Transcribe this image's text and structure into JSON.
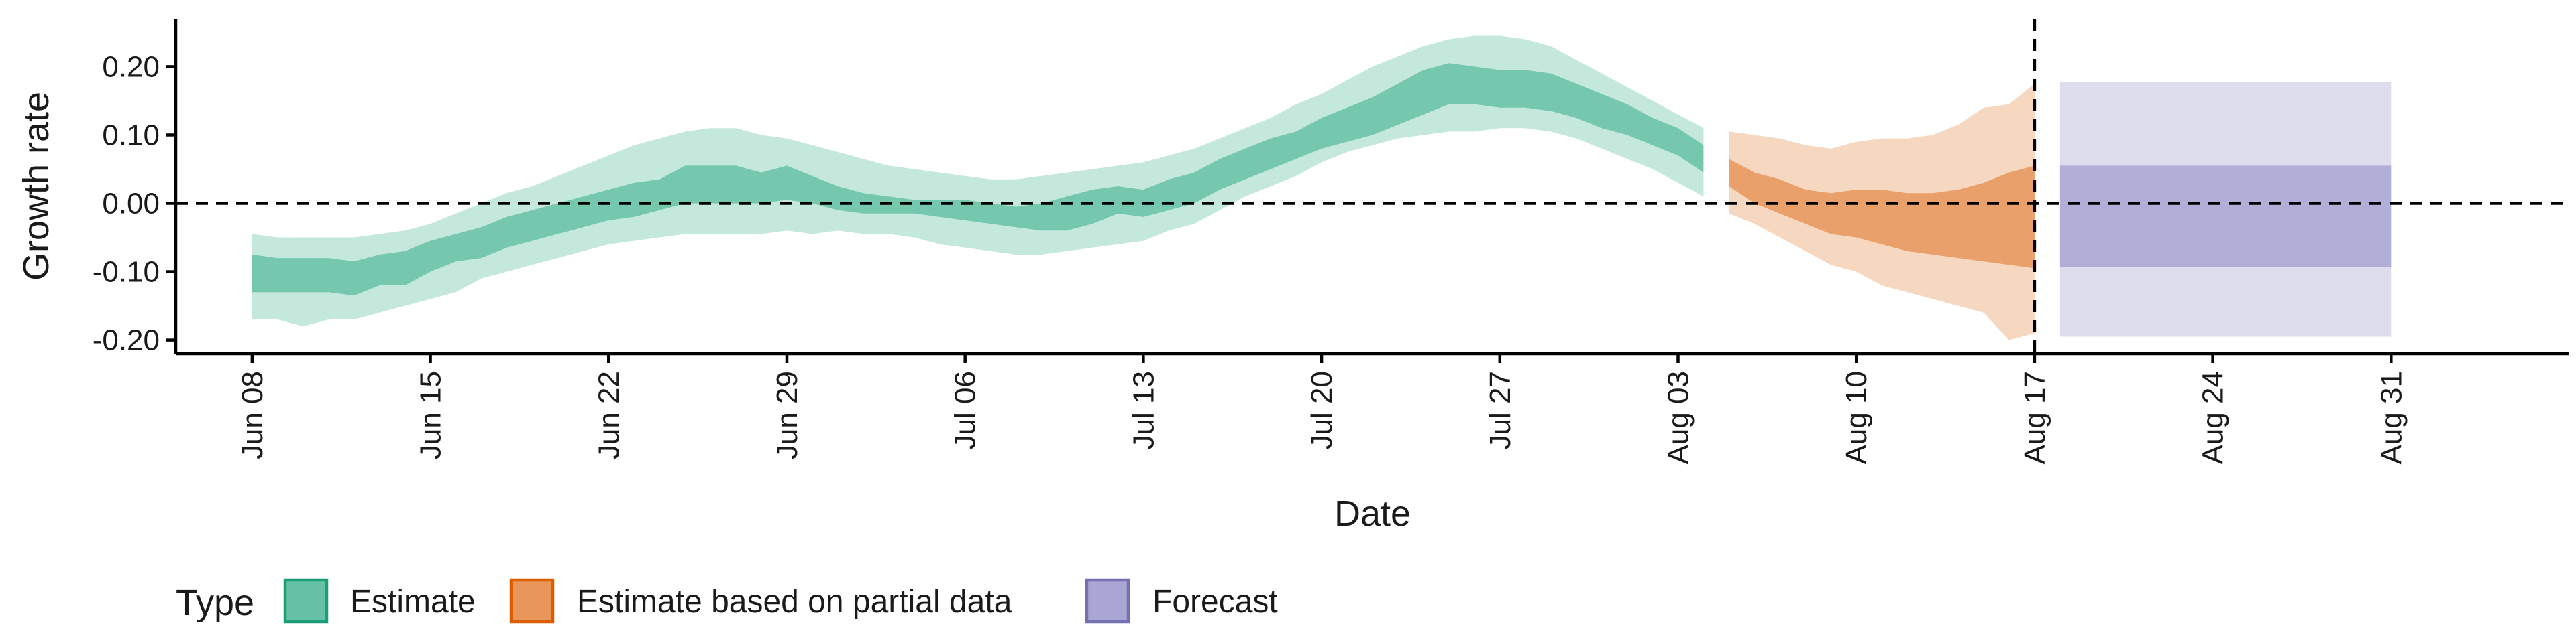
{
  "chart_data": {
    "type": "area",
    "title": "",
    "xlabel": "Date",
    "ylabel": "Growth rate",
    "ylim": [
      -0.22,
      0.27
    ],
    "yticks": [
      {
        "value": -0.2,
        "label": "-0.20"
      },
      {
        "value": -0.1,
        "label": "-0.10"
      },
      {
        "value": 0.0,
        "label": "0.00"
      },
      {
        "value": 0.1,
        "label": "0.10"
      },
      {
        "value": 0.2,
        "label": "0.20"
      }
    ],
    "xlim": [
      "2021-06-05",
      "2021-09-07"
    ],
    "xticks": [
      {
        "date": "2021-06-08",
        "label": "Jun 08"
      },
      {
        "date": "2021-06-15",
        "label": "Jun 15"
      },
      {
        "date": "2021-06-22",
        "label": "Jun 22"
      },
      {
        "date": "2021-06-29",
        "label": "Jun 29"
      },
      {
        "date": "2021-07-06",
        "label": "Jul 06"
      },
      {
        "date": "2021-07-13",
        "label": "Jul 13"
      },
      {
        "date": "2021-07-20",
        "label": "Jul 20"
      },
      {
        "date": "2021-07-27",
        "label": "Jul 27"
      },
      {
        "date": "2021-08-03",
        "label": "Aug 03"
      },
      {
        "date": "2021-08-10",
        "label": "Aug 10"
      },
      {
        "date": "2021-08-17",
        "label": "Aug 17"
      },
      {
        "date": "2021-08-24",
        "label": "Aug 24"
      },
      {
        "date": "2021-08-31",
        "label": "Aug 31"
      }
    ],
    "reference_lines": {
      "horizontal_y": 0.0,
      "vertical_x": "2021-08-17",
      "style": "dashed"
    },
    "legend": {
      "title": "Type",
      "placement": "bottom-left",
      "entries": [
        {
          "label": "Estimate",
          "fill": "#66c2a5",
          "stroke": "#1b9e77"
        },
        {
          "label": "Estimate based on partial data",
          "fill": "#e8965a",
          "stroke": "#d95f02"
        },
        {
          "label": "Forecast",
          "fill": "#a9a6d3",
          "stroke": "#7570b3"
        }
      ]
    },
    "series": [
      {
        "name": "Estimate",
        "color": "#66c2a5",
        "x": [
          "2021-06-08",
          "2021-06-09",
          "2021-06-10",
          "2021-06-11",
          "2021-06-12",
          "2021-06-13",
          "2021-06-14",
          "2021-06-15",
          "2021-06-16",
          "2021-06-17",
          "2021-06-18",
          "2021-06-19",
          "2021-06-20",
          "2021-06-21",
          "2021-06-22",
          "2021-06-23",
          "2021-06-24",
          "2021-06-25",
          "2021-06-26",
          "2021-06-27",
          "2021-06-28",
          "2021-06-29",
          "2021-06-30",
          "2021-07-01",
          "2021-07-02",
          "2021-07-03",
          "2021-07-04",
          "2021-07-05",
          "2021-07-06",
          "2021-07-07",
          "2021-07-08",
          "2021-07-09",
          "2021-07-10",
          "2021-07-11",
          "2021-07-12",
          "2021-07-13",
          "2021-07-14",
          "2021-07-15",
          "2021-07-16",
          "2021-07-17",
          "2021-07-18",
          "2021-07-19",
          "2021-07-20",
          "2021-07-21",
          "2021-07-22",
          "2021-07-23",
          "2021-07-24",
          "2021-07-25",
          "2021-07-26",
          "2021-07-27",
          "2021-07-28",
          "2021-07-29",
          "2021-07-30",
          "2021-07-31",
          "2021-08-01",
          "2021-08-02",
          "2021-08-03",
          "2021-08-04"
        ],
        "lower90": [
          -0.17,
          -0.17,
          -0.18,
          -0.17,
          -0.17,
          -0.16,
          -0.15,
          -0.14,
          -0.13,
          -0.11,
          -0.1,
          -0.09,
          -0.08,
          -0.07,
          -0.06,
          -0.055,
          -0.05,
          -0.045,
          -0.045,
          -0.045,
          -0.045,
          -0.04,
          -0.045,
          -0.04,
          -0.045,
          -0.045,
          -0.05,
          -0.06,
          -0.065,
          -0.07,
          -0.075,
          -0.075,
          -0.07,
          -0.065,
          -0.06,
          -0.055,
          -0.04,
          -0.03,
          -0.01,
          0.01,
          0.025,
          0.04,
          0.06,
          0.075,
          0.085,
          0.095,
          0.1,
          0.105,
          0.105,
          0.11,
          0.11,
          0.105,
          0.095,
          0.08,
          0.065,
          0.05,
          0.03,
          0.01
        ],
        "lower50": [
          -0.13,
          -0.13,
          -0.13,
          -0.13,
          -0.135,
          -0.12,
          -0.12,
          -0.1,
          -0.085,
          -0.08,
          -0.065,
          -0.055,
          -0.045,
          -0.035,
          -0.025,
          -0.02,
          -0.01,
          0.0,
          0.0,
          0.0,
          0.0,
          0.005,
          0.0,
          -0.01,
          -0.015,
          -0.015,
          -0.015,
          -0.02,
          -0.025,
          -0.03,
          -0.035,
          -0.04,
          -0.04,
          -0.03,
          -0.015,
          -0.02,
          -0.01,
          0.0,
          0.02,
          0.035,
          0.05,
          0.065,
          0.08,
          0.09,
          0.1,
          0.115,
          0.13,
          0.145,
          0.145,
          0.14,
          0.14,
          0.135,
          0.125,
          0.11,
          0.1,
          0.085,
          0.07,
          0.045
        ],
        "median": [
          -0.105,
          -0.105,
          -0.105,
          -0.105,
          -0.11,
          -0.1,
          -0.095,
          -0.08,
          -0.065,
          -0.055,
          -0.045,
          -0.035,
          -0.025,
          -0.015,
          -0.005,
          0.005,
          0.015,
          0.025,
          0.025,
          0.025,
          0.02,
          0.025,
          0.02,
          0.01,
          0.0,
          -0.005,
          -0.005,
          -0.005,
          -0.01,
          -0.015,
          -0.02,
          -0.02,
          -0.02,
          -0.005,
          0.005,
          0.0,
          0.01,
          0.02,
          0.04,
          0.055,
          0.07,
          0.085,
          0.1,
          0.11,
          0.12,
          0.14,
          0.155,
          0.17,
          0.17,
          0.165,
          0.165,
          0.16,
          0.15,
          0.135,
          0.12,
          0.105,
          0.09,
          0.065
        ],
        "upper50": [
          -0.075,
          -0.08,
          -0.08,
          -0.08,
          -0.085,
          -0.075,
          -0.07,
          -0.055,
          -0.045,
          -0.035,
          -0.02,
          -0.01,
          0.0,
          0.01,
          0.02,
          0.03,
          0.035,
          0.055,
          0.055,
          0.055,
          0.045,
          0.055,
          0.04,
          0.025,
          0.015,
          0.01,
          0.005,
          0.005,
          0.005,
          0.0,
          -0.005,
          0.0,
          0.01,
          0.02,
          0.025,
          0.02,
          0.035,
          0.045,
          0.065,
          0.08,
          0.095,
          0.105,
          0.125,
          0.14,
          0.155,
          0.175,
          0.195,
          0.205,
          0.2,
          0.195,
          0.195,
          0.19,
          0.175,
          0.16,
          0.145,
          0.125,
          0.11,
          0.085
        ],
        "upper90": [
          -0.045,
          -0.05,
          -0.05,
          -0.05,
          -0.05,
          -0.045,
          -0.04,
          -0.03,
          -0.015,
          0.0,
          0.015,
          0.025,
          0.04,
          0.055,
          0.07,
          0.085,
          0.095,
          0.105,
          0.11,
          0.11,
          0.1,
          0.095,
          0.085,
          0.075,
          0.065,
          0.055,
          0.05,
          0.045,
          0.04,
          0.035,
          0.035,
          0.04,
          0.045,
          0.05,
          0.055,
          0.06,
          0.07,
          0.08,
          0.095,
          0.11,
          0.125,
          0.145,
          0.16,
          0.18,
          0.2,
          0.215,
          0.23,
          0.24,
          0.245,
          0.245,
          0.24,
          0.23,
          0.21,
          0.19,
          0.17,
          0.15,
          0.13,
          0.11
        ]
      },
      {
        "name": "Estimate based on partial data",
        "color": "#e8965a",
        "x": [
          "2021-08-05",
          "2021-08-06",
          "2021-08-07",
          "2021-08-08",
          "2021-08-09",
          "2021-08-10",
          "2021-08-11",
          "2021-08-12",
          "2021-08-13",
          "2021-08-14",
          "2021-08-15",
          "2021-08-16",
          "2021-08-17"
        ],
        "lower90": [
          -0.015,
          -0.03,
          -0.05,
          -0.07,
          -0.09,
          -0.1,
          -0.12,
          -0.13,
          -0.14,
          -0.15,
          -0.16,
          -0.2,
          -0.19
        ],
        "lower50": [
          0.025,
          0.0,
          -0.015,
          -0.03,
          -0.045,
          -0.05,
          -0.06,
          -0.07,
          -0.075,
          -0.08,
          -0.085,
          -0.09,
          -0.095
        ],
        "median": [
          0.045,
          0.02,
          0.005,
          -0.005,
          -0.015,
          -0.02,
          -0.025,
          -0.03,
          -0.035,
          -0.035,
          -0.03,
          -0.025,
          -0.02
        ],
        "upper50": [
          0.065,
          0.045,
          0.035,
          0.02,
          0.015,
          0.02,
          0.02,
          0.015,
          0.015,
          0.02,
          0.03,
          0.045,
          0.055
        ],
        "upper90": [
          0.105,
          0.1,
          0.095,
          0.085,
          0.08,
          0.09,
          0.095,
          0.095,
          0.1,
          0.115,
          0.14,
          0.145,
          0.175
        ]
      },
      {
        "name": "Forecast",
        "color": "#a9a6d3",
        "x": [
          "2021-08-18",
          "2021-08-31"
        ],
        "lower90": [
          -0.195,
          -0.195
        ],
        "lower50": [
          -0.093,
          -0.093
        ],
        "upper50": [
          0.055,
          0.055
        ],
        "upper90": [
          0.177,
          0.177
        ]
      }
    ]
  }
}
